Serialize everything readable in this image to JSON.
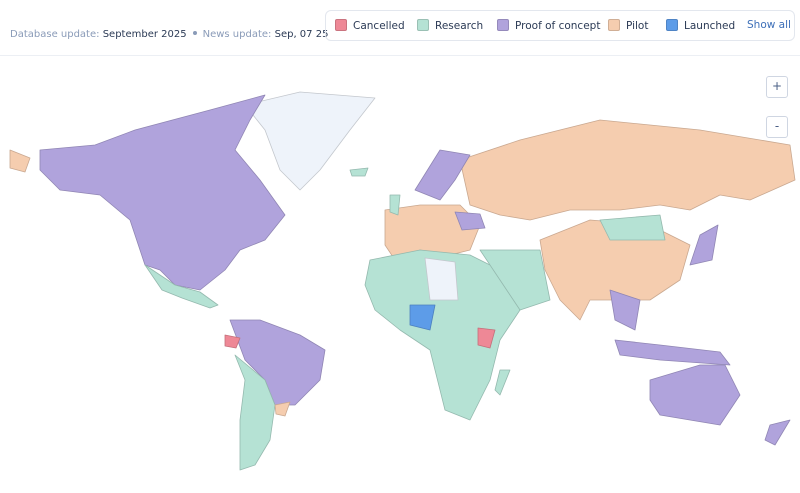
{
  "header": {
    "database_label": "Database update:",
    "database_value": "September 2025",
    "news_label": "News update:",
    "news_value": "Sep, 07 25"
  },
  "legend": {
    "items": [
      {
        "label": "Cancelled",
        "color": "#ee8896"
      },
      {
        "label": "Research",
        "color": "#b5e2d4"
      },
      {
        "label": "Proof of concept",
        "color": "#b0a3dc"
      },
      {
        "label": "Pilot",
        "color": "#f5cdaf"
      },
      {
        "label": "Launched",
        "color": "#5d9ce8"
      }
    ],
    "show_all": "Show all"
  },
  "zoom": {
    "in": "+",
    "out": "-"
  }
}
